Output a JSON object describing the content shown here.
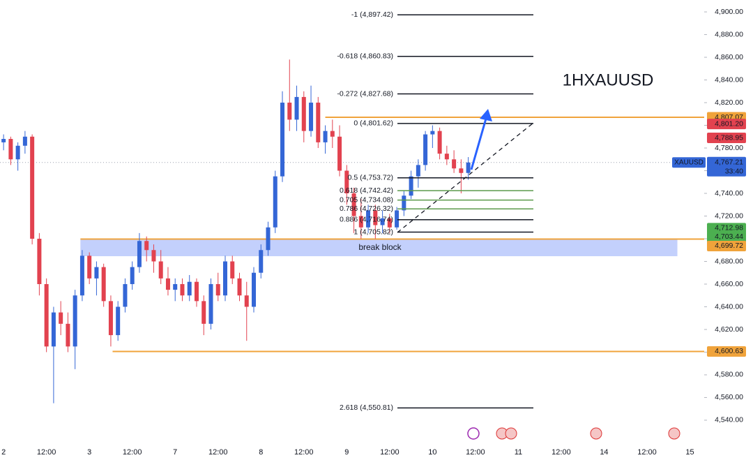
{
  "chart_data": {
    "type": "candlestick",
    "title": "1HXAUUSD",
    "x": [
      0,
      2,
      4,
      6,
      8,
      10,
      12,
      14,
      16,
      18,
      20,
      22,
      24,
      26,
      28,
      30,
      32,
      34,
      36,
      38,
      40,
      42,
      44,
      46,
      48,
      50,
      52,
      54,
      56,
      58,
      60,
      62,
      64,
      66,
      68,
      70,
      72,
      74,
      76,
      78,
      80,
      82,
      84,
      86,
      88,
      90,
      92,
      94,
      96,
      98,
      100,
      102,
      104,
      106,
      108,
      110,
      112,
      114,
      116,
      118,
      120,
      122,
      124,
      126,
      128,
      130
    ],
    "open": [
      4785,
      4788,
      4770,
      4782,
      4790,
      4700,
      4660,
      4605,
      4635,
      4625,
      4605,
      4650,
      4685,
      4665,
      4675,
      4645,
      4615,
      4640,
      4660,
      4675,
      4698,
      4690,
      4680,
      4665,
      4655,
      4660,
      4650,
      4662,
      4645,
      4625,
      4660,
      4650,
      4680,
      4665,
      4650,
      4640,
      4670,
      4690,
      4710,
      4755,
      4820,
      4805,
      4825,
      4795,
      4820,
      4785,
      4795,
      4790,
      4760,
      4740,
      4720,
      4710,
      4725,
      4712,
      4718,
      4710,
      4725,
      4738,
      4755,
      4765,
      4792,
      4795,
      4775,
      4770,
      4762,
      4758
    ],
    "high": [
      4792,
      4790,
      4785,
      4795,
      4792,
      4705,
      4665,
      4640,
      4645,
      4635,
      4655,
      4690,
      4688,
      4680,
      4678,
      4650,
      4645,
      4665,
      4680,
      4705,
      4702,
      4695,
      4690,
      4675,
      4665,
      4665,
      4668,
      4665,
      4650,
      4665,
      4670,
      4685,
      4685,
      4670,
      4662,
      4675,
      4695,
      4715,
      4760,
      4830,
      4858,
      4835,
      4830,
      4835,
      4825,
      4800,
      4805,
      4800,
      4765,
      4745,
      4735,
      4730,
      4730,
      4725,
      4722,
      4728,
      4742,
      4760,
      4770,
      4795,
      4800,
      4798,
      4782,
      4778,
      4770,
      4772
    ],
    "low": [
      4778,
      4765,
      4760,
      4775,
      4695,
      4650,
      4600,
      4555,
      4615,
      4600,
      4585,
      4645,
      4660,
      4650,
      4640,
      4605,
      4610,
      4635,
      4655,
      4670,
      4680,
      4670,
      4660,
      4650,
      4645,
      4645,
      4645,
      4640,
      4615,
      4620,
      4645,
      4645,
      4660,
      4645,
      4610,
      4635,
      4665,
      4685,
      4705,
      4750,
      4795,
      4795,
      4785,
      4790,
      4780,
      4775,
      4780,
      4755,
      4730,
      4705,
      4700,
      4705,
      4700,
      4705,
      4705,
      4708,
      4720,
      4735,
      4745,
      4760,
      4780,
      4770,
      4765,
      4758,
      4740,
      4752
    ],
    "close": [
      4788,
      4770,
      4782,
      4790,
      4700,
      4660,
      4605,
      4635,
      4625,
      4605,
      4650,
      4685,
      4665,
      4675,
      4645,
      4615,
      4640,
      4660,
      4675,
      4698,
      4690,
      4680,
      4665,
      4655,
      4660,
      4650,
      4662,
      4645,
      4625,
      4660,
      4650,
      4680,
      4665,
      4650,
      4640,
      4670,
      4690,
      4710,
      4755,
      4820,
      4805,
      4825,
      4795,
      4820,
      4785,
      4795,
      4790,
      4760,
      4740,
      4720,
      4710,
      4725,
      4712,
      4718,
      4710,
      4725,
      4738,
      4755,
      4765,
      4792,
      4795,
      4775,
      4770,
      4762,
      4758,
      4767.21
    ],
    "up_color": "#3466d6",
    "down_color": "#e2424f",
    "xlim": [
      -1,
      196
    ],
    "ylim": [
      4513.5,
      4910.5
    ],
    "xticks": [
      {
        "value": 0,
        "label": "2"
      },
      {
        "value": 12,
        "label": "12:00"
      },
      {
        "value": 24,
        "label": "3"
      },
      {
        "value": 36,
        "label": "12:00"
      },
      {
        "value": 48,
        "label": "7"
      },
      {
        "value": 60,
        "label": "12:00"
      },
      {
        "value": 72,
        "label": "8"
      },
      {
        "value": 84,
        "label": "12:00"
      },
      {
        "value": 96,
        "label": "9"
      },
      {
        "value": 108,
        "label": "12:00"
      },
      {
        "value": 120,
        "label": "10"
      },
      {
        "value": 132,
        "label": "12:00"
      },
      {
        "value": 144,
        "label": "11"
      },
      {
        "value": 156,
        "label": "12:00"
      },
      {
        "value": 168,
        "label": "14"
      },
      {
        "value": 180,
        "label": "12:00"
      },
      {
        "value": 192,
        "label": "15"
      }
    ],
    "yticks": [
      {
        "value": 4540,
        "label": "4,540.00"
      },
      {
        "value": 4560,
        "label": "4,560.00"
      },
      {
        "value": 4580,
        "label": "4,580.00"
      },
      {
        "value": 4600,
        "label": "4,600.00"
      },
      {
        "value": 4620,
        "label": "4,620.00"
      },
      {
        "value": 4640,
        "label": "4,640.00"
      },
      {
        "value": 4660,
        "label": "4,660.00"
      },
      {
        "value": 4680,
        "label": "4,680.00"
      },
      {
        "value": 4700,
        "label": "4,700.00"
      },
      {
        "value": 4720,
        "label": "4,720.00"
      },
      {
        "value": 4740,
        "label": "4,740.00"
      },
      {
        "value": 4760,
        "label": "4,760.00"
      },
      {
        "value": 4780,
        "label": "4,780.00"
      },
      {
        "value": 4800,
        "label": "4,800.00"
      },
      {
        "value": 4820,
        "label": "4,820.00"
      },
      {
        "value": 4840,
        "label": "4,840.00"
      },
      {
        "value": 4860,
        "label": "4,860.00"
      },
      {
        "value": 4880,
        "label": "4,880.00"
      },
      {
        "value": 4900,
        "label": "4,900.00"
      }
    ],
    "fib_levels": [
      {
        "label": "-1 (4,897.42)",
        "value": 4897.42,
        "color": "#131722"
      },
      {
        "label": "-0.618 (4,860.83)",
        "value": 4860.83,
        "color": "#131722"
      },
      {
        "label": "-0.272 (4,827.68)",
        "value": 4827.68,
        "color": "#131722"
      },
      {
        "label": "0 (4,801.62)",
        "value": 4801.62,
        "color": "#131722"
      },
      {
        "label": "0.5 (4,753.72)",
        "value": 4753.72,
        "color": "#131722"
      },
      {
        "label": "0.618 (4,742.42)",
        "value": 4742.42,
        "color": "#5b9a4b"
      },
      {
        "label": "0.705 (4,734.08)",
        "value": 4734.08,
        "color": "#5b9a4b"
      },
      {
        "label": "0.786 (4,726.32)",
        "value": 4726.32,
        "color": "#5b9a4b"
      },
      {
        "label": "0.886 (4,716.74)",
        "value": 4716.74,
        "color": "#131722"
      },
      {
        "label": "1 (4,705.82)",
        "value": 4705.82,
        "color": "#131722"
      },
      {
        "label": "2.618 (4,550.81)",
        "value": 4550.81,
        "color": "#131722"
      }
    ],
    "levels": [
      {
        "value": 4807.07,
        "from": 90,
        "color": "#f0a33b"
      },
      {
        "value": 4699.72,
        "from": 21.5,
        "color": "#f0a33b"
      },
      {
        "value": 4600.63,
        "from": 30.5,
        "color": "#f0a33b"
      }
    ],
    "zone": {
      "label": "break block",
      "top": 4699.72,
      "bottom": 4684.6,
      "from": 21.5,
      "to": 188.5,
      "color": "#b8c8fb"
    },
    "price_labels": [
      {
        "label": "4,807.07",
        "value": 4807.07,
        "color": "#f0a33b"
      },
      {
        "label": "4,801.20",
        "value": 4801.2,
        "color": "#e2424f"
      },
      {
        "label": "4,788.95",
        "value": 4788.95,
        "color": "#e2424f"
      },
      {
        "label": "4,712.98",
        "value": 4712.98,
        "color": "#4caf50"
      },
      {
        "label": "4,703.44",
        "value": 4703.44,
        "color": "#4caf50"
      },
      {
        "label": "4,699.72",
        "value": 4699.72,
        "color": "#f0a33b"
      },
      {
        "label": "4,600.63",
        "value": 4600.63,
        "color": "#f0a33b"
      }
    ],
    "current": {
      "symbol": "XAUUSD",
      "label": "4,767.21",
      "value": 4767.21,
      "countdown": "33:40",
      "color": "#3466d6"
    }
  }
}
